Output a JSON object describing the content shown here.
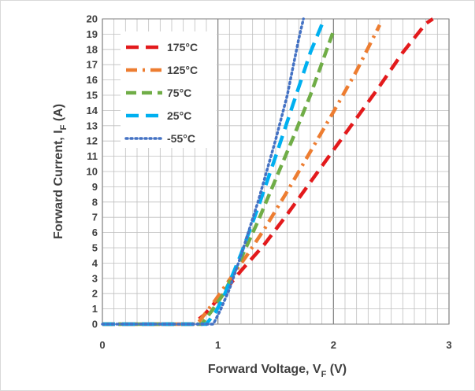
{
  "chart_data": {
    "type": "line",
    "title": "",
    "xlabel": {
      "main": "Forward Voltage, V",
      "sub": "F",
      "unit": " (V)"
    },
    "ylabel": {
      "main": "Forward Current, I",
      "sub": "F",
      "unit": " (A)"
    },
    "xlim": [
      0,
      3
    ],
    "ylim": [
      0,
      20
    ],
    "x_ticks": [
      "0",
      "1",
      "2",
      "3"
    ],
    "y_ticks": [
      "0",
      "1",
      "2",
      "3",
      "4",
      "5",
      "6",
      "7",
      "8",
      "9",
      "10",
      "11",
      "12",
      "13",
      "14",
      "15",
      "16",
      "17",
      "18",
      "19",
      "20"
    ],
    "grid": true,
    "legend_position": "top-left",
    "series": [
      {
        "name": "175°C",
        "color": "#e31a1c",
        "dash": "dash",
        "x": [
          0.0,
          0.78,
          0.88,
          0.95,
          1.05,
          1.2,
          1.4,
          1.6,
          1.8,
          2.0,
          2.2,
          2.4,
          2.6,
          2.8,
          2.86
        ],
        "y": [
          0.0,
          0.0,
          0.6,
          1.2,
          2.1,
          3.5,
          5.2,
          7.2,
          9.3,
          11.4,
          13.5,
          15.6,
          17.8,
          19.7,
          20.0
        ]
      },
      {
        "name": "125°C",
        "color": "#ed7d31",
        "dash": "dashdot",
        "x": [
          0.0,
          0.82,
          0.9,
          0.98,
          1.1,
          1.25,
          1.4,
          1.6,
          1.8,
          2.0,
          2.2,
          2.4
        ],
        "y": [
          0.0,
          0.0,
          0.8,
          1.6,
          2.9,
          4.5,
          6.2,
          8.7,
          11.3,
          13.9,
          16.6,
          19.6
        ]
      },
      {
        "name": "75°C",
        "color": "#70ad47",
        "dash": "longdash",
        "x": [
          0.0,
          0.86,
          0.95,
          1.05,
          1.2,
          1.35,
          1.5,
          1.65,
          1.8,
          2.0
        ],
        "y": [
          0.0,
          0.0,
          0.9,
          2.0,
          4.3,
          6.8,
          9.5,
          12.2,
          15.0,
          19.2
        ]
      },
      {
        "name": "25°C",
        "color": "#00b0f0",
        "dash": "dash",
        "x": [
          0.0,
          0.9,
          0.98,
          1.05,
          1.2,
          1.35,
          1.5,
          1.65,
          1.8,
          1.92
        ],
        "y": [
          0.0,
          0.0,
          0.8,
          1.8,
          4.6,
          7.7,
          11.0,
          14.4,
          17.8,
          20.0
        ]
      },
      {
        "name": "-55°C",
        "color": "#4472c4",
        "dash": "dot",
        "x": [
          0.0,
          0.96,
          1.02,
          1.1,
          1.2,
          1.35,
          1.5,
          1.6,
          1.7,
          1.74
        ],
        "y": [
          0.0,
          0.0,
          0.9,
          2.3,
          4.5,
          8.1,
          12.1,
          15.0,
          18.7,
          20.0
        ]
      }
    ]
  }
}
